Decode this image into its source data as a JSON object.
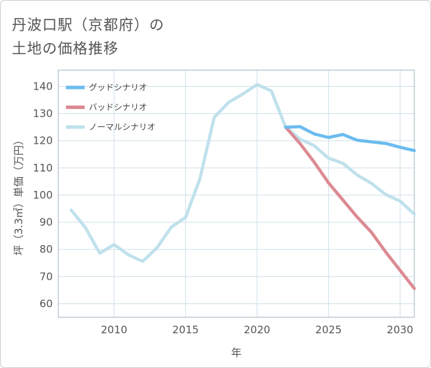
{
  "chart_data": {
    "type": "line",
    "title_lines": [
      "丹波口駅（京都府）の",
      "土地の価格推移"
    ],
    "xlabel": "年",
    "ylabel": "坪（3.3㎡）単価（万円）",
    "xlim": [
      2006.1,
      2031
    ],
    "ylim": [
      55,
      146
    ],
    "x_ticks": [
      2010,
      2015,
      2020,
      2025,
      2030
    ],
    "y_ticks": [
      60,
      70,
      80,
      90,
      100,
      110,
      120,
      130,
      140
    ],
    "grid": true,
    "legend_position": "top-left",
    "series": [
      {
        "name": "グッドシナリオ",
        "color": "#6bbbef",
        "x": [
          2022,
          2023,
          2024,
          2025,
          2026,
          2027,
          2028,
          2029,
          2030,
          2031
        ],
        "y": [
          125.0,
          125.2,
          122.5,
          121.2,
          122.3,
          120.2,
          119.6,
          119.0,
          117.6,
          116.4
        ]
      },
      {
        "name": "バッドシナリオ",
        "color": "#dc8a93",
        "x": [
          2022,
          2023,
          2024,
          2025,
          2026,
          2027,
          2028,
          2029,
          2030,
          2031
        ],
        "y": [
          125.0,
          119.0,
          112.1,
          104.5,
          98.2,
          91.9,
          86.3,
          79.0,
          72.3,
          65.6
        ]
      },
      {
        "name": "ノーマルシナリオ",
        "color": "#bfe1ec",
        "x": [
          2007,
          2008,
          2009,
          2010,
          2011,
          2012,
          2013,
          2014,
          2015,
          2016,
          2017,
          2018,
          2019,
          2020,
          2021,
          2022,
          2023,
          2024,
          2025,
          2026,
          2027,
          2028,
          2029,
          2030,
          2031
        ],
        "y": [
          94.5,
          88.0,
          78.6,
          81.8,
          78.0,
          75.6,
          80.6,
          88.2,
          91.8,
          106.0,
          128.6,
          134.1,
          137.2,
          140.7,
          138.3,
          125.0,
          120.6,
          118.2,
          113.6,
          111.7,
          107.4,
          104.3,
          100.2,
          97.8,
          93.0
        ]
      }
    ]
  }
}
